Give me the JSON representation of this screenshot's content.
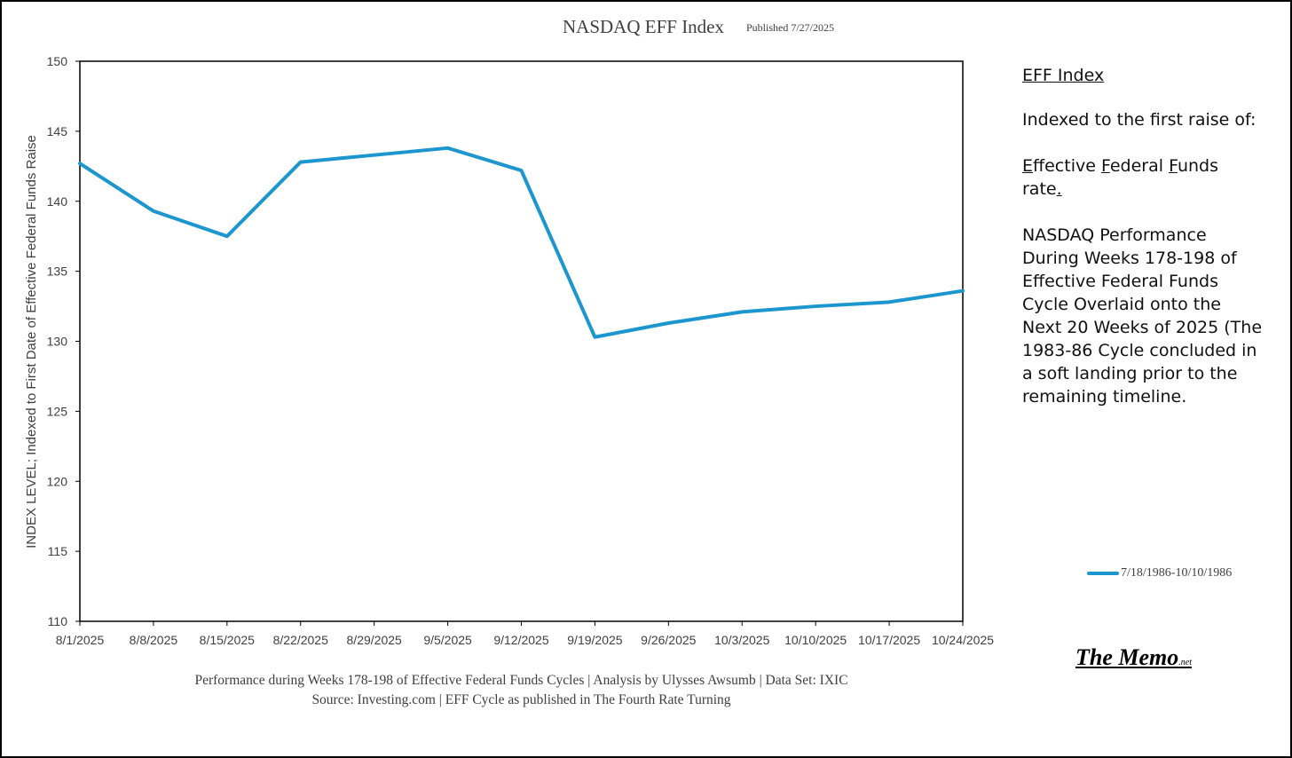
{
  "chart_data": {
    "type": "line",
    "title": "NASDAQ EFF Index",
    "subtitle": "Published 7/27/2025",
    "ylabel": "INDEX LEVEL; Indexed to First Date of Effective Federal Funds Raise",
    "xlabel": "",
    "ylim": [
      110,
      150
    ],
    "yticks": [
      110,
      115,
      120,
      125,
      130,
      135,
      140,
      145,
      150
    ],
    "categories": [
      "8/1/2025",
      "8/8/2025",
      "8/15/2025",
      "8/22/2025",
      "8/29/2025",
      "9/5/2025",
      "9/12/2025",
      "9/19/2025",
      "9/26/2025",
      "10/3/2025",
      "10/10/2025",
      "10/17/2025",
      "10/24/2025"
    ],
    "series": [
      {
        "name": "7/18/1986-10/10/1986",
        "color": "#1b96cf",
        "values": [
          142.7,
          139.3,
          137.5,
          142.8,
          143.3,
          143.8,
          142.2,
          130.3,
          131.3,
          132.1,
          132.5,
          132.8,
          133.6
        ]
      }
    ],
    "grid": false,
    "legend_position": "right"
  },
  "side_panel": {
    "heading": "EFF Index",
    "indexed_to": "Indexed to the first raise of:",
    "eff_line1_e": "E",
    "eff_line1_rest1": "ffective ",
    "eff_line1_f": "F",
    "eff_line1_rest2": "ederal ",
    "eff_line1_f2": "F",
    "eff_line1_rest3": "unds",
    "eff_line2": "rate",
    "eff_line2_dot": ".",
    "description": "NASDAQ Performance During Weeks 178-198 of Effective Federal Funds Cycle Overlaid onto the Next 20 Weeks of 2025 (The 1983-86 Cycle concluded in a soft landing prior to the remaining timeline."
  },
  "footer": {
    "line1": "Performance during Weeks 178-198 of Effective Federal Funds Cycles  |  Analysis  by Ulysses Awsumb  |  Data Set: IXIC",
    "line2": "Source: Investing.com  |  EFF Cycle as published in The Fourth Rate Turning"
  },
  "brand": {
    "name": "The Memo",
    "suffix": ".net"
  }
}
